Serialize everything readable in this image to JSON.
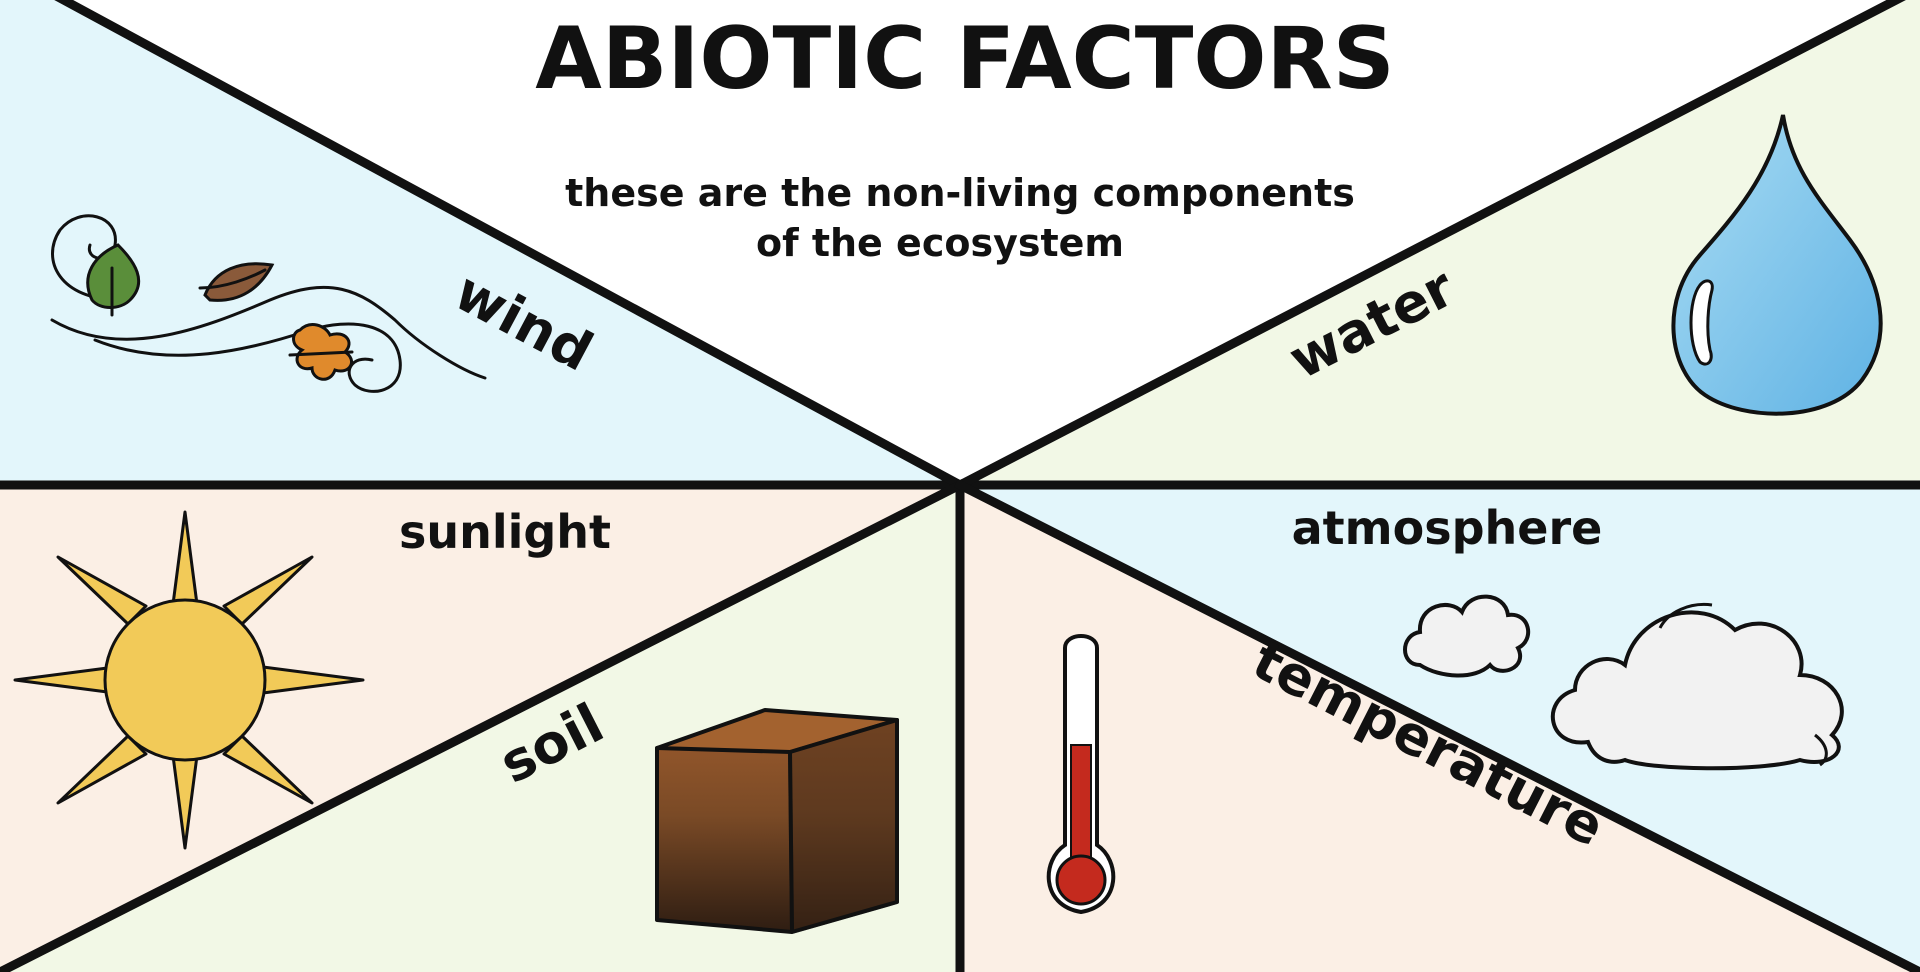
{
  "title": "ABIOTIC FACTORS",
  "subtitle_lines": [
    "these are the non-living components",
    "of the ecosystem"
  ],
  "labels": {
    "wind": "wind",
    "water": "water",
    "sunlight": "sunlight",
    "soil": "soil",
    "atmosphere": "atmosphere",
    "temperature": "temperature"
  },
  "colors": {
    "wind_bg": "#e3f6fb",
    "water_bg": "#f2f8e6",
    "sunlight_bg": "#fbefe5",
    "soil_bg": "#f2f8e6",
    "atmosphere_bg": "#e3f6fb",
    "temperature_bg": "#fbefe5",
    "title_bg": "#ffffff",
    "line": "#111111"
  },
  "icons": [
    "wind-leaves-icon",
    "water-drop-icon",
    "sun-icon",
    "soil-cube-icon",
    "clouds-icon",
    "thermometer-icon"
  ]
}
